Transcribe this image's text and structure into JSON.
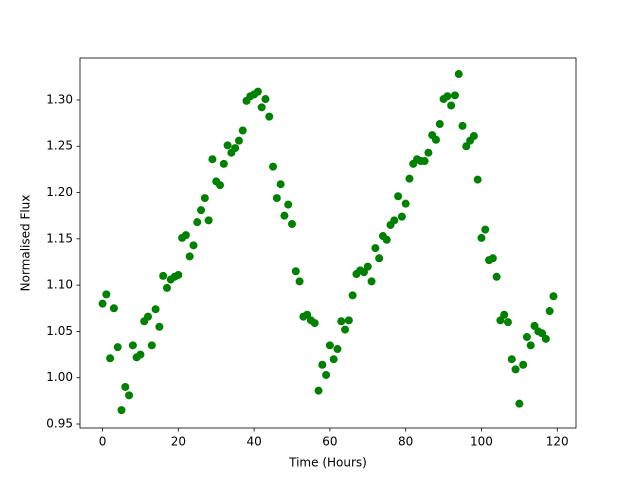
{
  "chart_data": {
    "type": "scatter",
    "x_label": "Time (Hours)",
    "y_label": "Normalised Flux",
    "color": "#008000",
    "x": [
      0,
      1,
      2,
      3,
      4,
      5,
      6,
      7,
      8,
      9,
      10,
      11,
      12,
      13,
      14,
      15,
      16,
      17,
      18,
      19,
      20,
      21,
      22,
      23,
      24,
      25,
      26,
      27,
      28,
      29,
      30,
      31,
      32,
      33,
      34,
      35,
      36,
      37,
      38,
      39,
      40,
      41,
      42,
      43,
      44,
      45,
      46,
      47,
      48,
      49,
      50,
      51,
      52,
      53,
      54,
      55,
      56,
      57,
      58,
      59,
      60,
      61,
      62,
      63,
      64,
      65,
      66,
      67,
      68,
      69,
      70,
      71,
      72,
      73,
      74,
      75,
      76,
      77,
      78,
      79,
      80,
      81,
      82,
      83,
      84,
      85,
      86,
      87,
      88,
      89,
      90,
      91,
      92,
      93,
      94,
      95,
      96,
      97,
      98,
      99,
      100,
      101,
      102,
      103,
      104,
      105,
      106,
      107,
      108,
      109,
      110,
      111,
      112,
      113,
      114,
      115,
      116,
      117,
      118,
      119
    ],
    "values": [
      1.08,
      1.09,
      1.021,
      1.075,
      1.033,
      0.965,
      0.99,
      0.981,
      1.035,
      1.022,
      1.025,
      1.061,
      1.066,
      1.035,
      1.074,
      1.055,
      1.11,
      1.097,
      1.106,
      1.109,
      1.111,
      1.151,
      1.154,
      1.131,
      1.143,
      1.168,
      1.181,
      1.194,
      1.17,
      1.236,
      1.212,
      1.208,
      1.231,
      1.251,
      1.243,
      1.248,
      1.256,
      1.267,
      1.299,
      1.304,
      1.306,
      1.309,
      1.292,
      1.301,
      1.282,
      1.228,
      1.194,
      1.209,
      1.175,
      1.187,
      1.166,
      1.115,
      1.104,
      1.066,
      1.068,
      1.062,
      1.059,
      0.986,
      1.014,
      1.003,
      1.035,
      1.02,
      1.031,
      1.061,
      1.052,
      1.062,
      1.089,
      1.112,
      1.116,
      1.114,
      1.12,
      1.104,
      1.14,
      1.129,
      1.153,
      1.149,
      1.165,
      1.17,
      1.196,
      1.174,
      1.188,
      1.215,
      1.231,
      1.236,
      1.234,
      1.234,
      1.243,
      1.262,
      1.257,
      1.274,
      1.301,
      1.304,
      1.294,
      1.305,
      1.328,
      1.272,
      1.25,
      1.256,
      1.261,
      1.214,
      1.151,
      1.16,
      1.127,
      1.129,
      1.109,
      1.062,
      1.068,
      1.06,
      1.02,
      1.009,
      0.972,
      1.014,
      1.044,
      1.035,
      1.056,
      1.05,
      1.048,
      1.042,
      1.072,
      1.088
    ],
    "xlim": [
      -5.95,
      124.95
    ],
    "xticks": [
      0,
      20,
      40,
      60,
      80,
      100,
      120
    ],
    "ylim": [
      0.9457,
      1.3453
    ],
    "yticks": [
      0.95,
      {
        "value": 1.0,
        "label": "1.00"
      },
      1.05,
      {
        "value": 1.1,
        "label": "1.10"
      },
      1.15,
      {
        "value": 1.2,
        "label": "1.20"
      },
      1.25,
      {
        "value": 1.3,
        "label": "1.30"
      }
    ],
    "grid": false
  }
}
